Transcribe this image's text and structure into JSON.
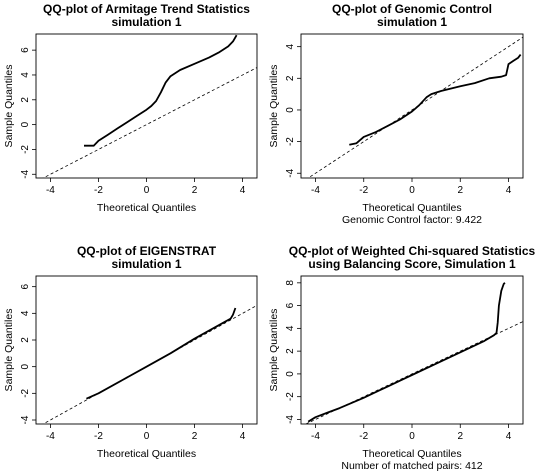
{
  "chart_data": [
    {
      "type": "line",
      "title": [
        "QQ-plot of Armitage Trend Statistics",
        "simulation 1"
      ],
      "xlabel": "Theoretical Quantiles",
      "ylabel": "Sample Quantiles",
      "note": "",
      "xticks": [
        "-4",
        "-2",
        "0",
        "2",
        "4"
      ],
      "yticks": [
        "-4",
        "-2",
        "0",
        "2",
        "4",
        "6"
      ],
      "xlim": [
        -4.6,
        4.6
      ],
      "ylim": [
        -4.3,
        7.3
      ],
      "reference_line": {
        "slope": 1,
        "intercept": 0,
        "style": "dashed"
      },
      "series": [
        {
          "x": [
            -2.6,
            -2.2,
            -2.0,
            -1.6,
            -1.2,
            -0.8,
            -0.4,
            0.0,
            0.2,
            0.4,
            0.6,
            0.8,
            1.0,
            1.4,
            2.0,
            2.6,
            3.0,
            3.4,
            3.6,
            3.75
          ],
          "y": [
            -1.7,
            -1.7,
            -1.3,
            -0.8,
            -0.3,
            0.2,
            0.7,
            1.2,
            1.5,
            1.9,
            2.6,
            3.4,
            3.9,
            4.4,
            4.9,
            5.4,
            5.8,
            6.3,
            6.7,
            7.2
          ]
        }
      ]
    },
    {
      "type": "line",
      "title": [
        "QQ-plot of Genomic Control",
        "simulation 1"
      ],
      "xlabel": "Theoretical Quantiles",
      "ylabel": "Sample Quantiles",
      "note": "Genomic Control factor: 9.422",
      "xticks": [
        "-4",
        "-2",
        "0",
        "2",
        "4"
      ],
      "yticks": [
        "-4",
        "-2",
        "0",
        "2",
        "4"
      ],
      "xlim": [
        -4.6,
        4.6
      ],
      "ylim": [
        -4.3,
        4.8
      ],
      "reference_line": {
        "slope": 1,
        "intercept": 0,
        "style": "dashed"
      },
      "series": [
        {
          "x": [
            -2.6,
            -2.3,
            -2.0,
            -1.5,
            -1.0,
            -0.5,
            0.0,
            0.3,
            0.6,
            0.8,
            1.2,
            2.0,
            2.6,
            3.2,
            3.7,
            3.9,
            4.0,
            4.2,
            4.4,
            4.5
          ],
          "y": [
            -2.2,
            -2.1,
            -1.7,
            -1.4,
            -1.0,
            -0.6,
            -0.1,
            0.3,
            0.8,
            1.0,
            1.2,
            1.5,
            1.7,
            2.0,
            2.1,
            2.2,
            2.9,
            3.1,
            3.3,
            3.5
          ]
        }
      ]
    },
    {
      "type": "line",
      "title": [
        "QQ-plot of EIGENSTRAT",
        "simulation 1"
      ],
      "xlabel": "Theoretical Quantiles",
      "ylabel": "Sample Quantiles",
      "note": "",
      "xticks": [
        "-4",
        "-2",
        "0",
        "2",
        "4"
      ],
      "yticks": [
        "-4",
        "-2",
        "0",
        "2",
        "4",
        "6"
      ],
      "xlim": [
        -4.6,
        4.6
      ],
      "ylim": [
        -4.3,
        6.8
      ],
      "reference_line": {
        "slope": 1,
        "intercept": 0,
        "style": "dashed"
      },
      "series": [
        {
          "x": [
            -2.5,
            -2.0,
            -1.0,
            0.0,
            1.0,
            2.0,
            3.0,
            3.3,
            3.5,
            3.6,
            3.7
          ],
          "y": [
            -2.4,
            -2.0,
            -1.0,
            0.0,
            1.0,
            2.1,
            3.1,
            3.4,
            3.6,
            3.9,
            4.4
          ]
        }
      ]
    },
    {
      "type": "line",
      "title": [
        "QQ-plot of Weighted Chi-squared Statistics",
        "using Balancing Score, Simulation 1"
      ],
      "xlabel": "Theoretical Quantiles",
      "ylabel": "Sample Quantiles",
      "note": "Number of matched pairs: 412",
      "xticks": [
        "-4",
        "-2",
        "0",
        "2",
        "4"
      ],
      "yticks": [
        "-4",
        "-2",
        "0",
        "2",
        "4",
        "6",
        "8"
      ],
      "xlim": [
        -4.6,
        4.6
      ],
      "ylim": [
        -4.4,
        8.6
      ],
      "reference_line": {
        "slope": 1,
        "intercept": 0,
        "style": "dashed"
      },
      "series": [
        {
          "x": [
            -4.3,
            -4.0,
            -3.5,
            -3.0,
            -2.0,
            -1.0,
            0.0,
            1.0,
            2.0,
            3.0,
            3.4,
            3.5,
            3.55,
            3.6,
            3.7,
            3.8,
            3.85
          ],
          "y": [
            -4.2,
            -3.8,
            -3.4,
            -3.0,
            -2.1,
            -1.1,
            -0.1,
            0.9,
            1.9,
            2.9,
            3.4,
            3.6,
            4.5,
            6.0,
            7.3,
            7.9,
            8.0
          ]
        }
      ]
    }
  ]
}
